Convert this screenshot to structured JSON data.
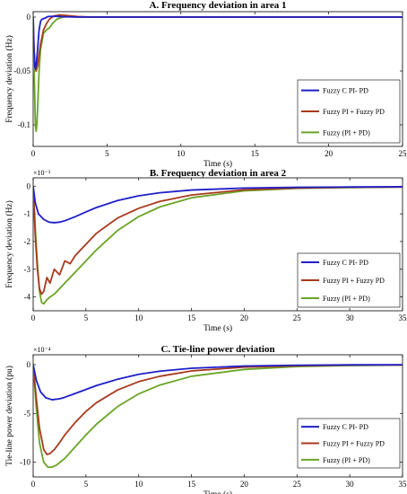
{
  "chart_data": [
    {
      "type": "line",
      "title": "A. Frequency deviation in area 1",
      "xlabel": "Time (s)",
      "ylabel": "Frequency deviation (Hz)",
      "multiplier": "",
      "xlim": [
        0,
        25
      ],
      "ylim": [
        -0.12,
        0.005
      ],
      "xticks": [
        0,
        5,
        10,
        15,
        20,
        25
      ],
      "yticks": [
        0,
        -0.05,
        -0.1
      ],
      "ytick_labels": [
        "0",
        "-0.05",
        "-0.1"
      ],
      "legend_position": "right",
      "series": [
        {
          "name": "Fuzzy C PI- PD",
          "color": "#1f1fc8",
          "x": [
            0,
            0.05,
            0.1,
            0.15,
            0.2,
            0.3,
            0.4,
            0.5,
            0.6,
            0.8,
            1.0,
            1.5,
            2,
            3,
            5,
            10,
            25
          ],
          "y": [
            0,
            -0.03,
            -0.045,
            -0.048,
            -0.045,
            -0.03,
            -0.012,
            -0.004,
            -0.002,
            -0.001,
            0.0005,
            0.0008,
            0.0003,
            0,
            0,
            0,
            0
          ]
        },
        {
          "name": "Fuzzy PI + Fuzzy PD",
          "color": "#a83a1e",
          "x": [
            0,
            0.05,
            0.1,
            0.2,
            0.3,
            0.4,
            0.5,
            0.7,
            0.9,
            1.1,
            1.4,
            1.8,
            2.2,
            3,
            4,
            6,
            25
          ],
          "y": [
            0,
            -0.025,
            -0.04,
            -0.05,
            -0.045,
            -0.035,
            -0.025,
            -0.012,
            -0.006,
            -0.002,
            0.001,
            0.002,
            0.0015,
            0.0005,
            0,
            0,
            0
          ]
        },
        {
          "name": "Fuzzy (PI + PD)",
          "color": "#6aa428",
          "x": [
            0,
            0.05,
            0.1,
            0.15,
            0.2,
            0.25,
            0.3,
            0.4,
            0.5,
            0.7,
            0.9,
            1.1,
            1.3,
            1.6,
            2,
            2.5,
            3,
            5,
            25
          ],
          "y": [
            0,
            -0.04,
            -0.07,
            -0.1,
            -0.106,
            -0.1,
            -0.085,
            -0.05,
            -0.03,
            -0.015,
            -0.012,
            -0.01,
            -0.006,
            -0.002,
            0,
            0.0005,
            0,
            0,
            0
          ]
        }
      ]
    },
    {
      "type": "line",
      "title": "B. Frequency deviation in area 2",
      "xlabel": "Time (s)",
      "ylabel": "Frequency deviation (Hz)",
      "multiplier": "×10⁻³",
      "xlim": [
        0,
        35
      ],
      "ylim": [
        -4.5,
        0.3
      ],
      "xticks": [
        0,
        5,
        10,
        15,
        20,
        25,
        30,
        35
      ],
      "yticks": [
        0,
        -1,
        -2,
        -3,
        -4
      ],
      "ytick_labels": [
        "0",
        "-1",
        "-2",
        "-3",
        "-4"
      ],
      "legend_position": "right",
      "series": [
        {
          "name": "Fuzzy C PI- PD",
          "color": "#1f1fc8",
          "x": [
            0,
            0.2,
            0.5,
            1,
            1.5,
            2,
            2.5,
            3,
            4,
            5,
            6,
            8,
            10,
            12,
            15,
            20,
            25,
            30,
            35
          ],
          "y": [
            0,
            -0.6,
            -1.0,
            -1.2,
            -1.3,
            -1.32,
            -1.3,
            -1.25,
            -1.1,
            -0.93,
            -0.77,
            -0.52,
            -0.35,
            -0.24,
            -0.14,
            -0.07,
            -0.04,
            -0.03,
            -0.02
          ]
        },
        {
          "name": "Fuzzy PI + Fuzzy PD",
          "color": "#a83a1e",
          "x": [
            0,
            0.2,
            0.4,
            0.6,
            0.8,
            1.0,
            1.3,
            1.6,
            2.0,
            2.5,
            3,
            3.5,
            4,
            5,
            6,
            8,
            10,
            12,
            15,
            20,
            25,
            30,
            35
          ],
          "y": [
            0,
            -1.8,
            -3.0,
            -3.7,
            -3.9,
            -3.8,
            -3.3,
            -3.5,
            -3.0,
            -3.2,
            -2.7,
            -2.8,
            -2.5,
            -2.1,
            -1.7,
            -1.15,
            -0.8,
            -0.55,
            -0.32,
            -0.13,
            -0.07,
            -0.04,
            -0.03
          ]
        },
        {
          "name": "Fuzzy (PI + PD)",
          "color": "#6aa428",
          "x": [
            0,
            0.2,
            0.4,
            0.6,
            0.8,
            1.0,
            1.3,
            1.6,
            2,
            2.5,
            3,
            4,
            5,
            6,
            8,
            10,
            12,
            15,
            20,
            25,
            30,
            35
          ],
          "y": [
            0,
            -1.5,
            -2.8,
            -3.8,
            -4.2,
            -4.25,
            -4.1,
            -4.0,
            -3.9,
            -3.7,
            -3.5,
            -3.1,
            -2.7,
            -2.3,
            -1.6,
            -1.1,
            -0.75,
            -0.42,
            -0.17,
            -0.08,
            -0.05,
            -0.03
          ]
        }
      ]
    },
    {
      "type": "line",
      "title": "C. Tie-line power deviation",
      "xlabel": "Time (s)",
      "ylabel": "Tie-line power deviation (pu)",
      "multiplier": "×10⁻⁴",
      "xlim": [
        0,
        35
      ],
      "ylim": [
        -11.5,
        1
      ],
      "xticks": [
        0,
        5,
        10,
        15,
        20,
        25,
        30,
        35
      ],
      "yticks": [
        0,
        -5,
        -10
      ],
      "ytick_labels": [
        "0",
        "-5",
        "-10"
      ],
      "legend_position": "right",
      "series": [
        {
          "name": "Fuzzy C PI- PD",
          "color": "#1f1fc8",
          "x": [
            0,
            0.3,
            0.7,
            1.2,
            1.8,
            2.5,
            3,
            4,
            5,
            6,
            8,
            10,
            12,
            15,
            20,
            25,
            30,
            35
          ],
          "y": [
            0,
            -1.6,
            -2.8,
            -3.4,
            -3.6,
            -3.5,
            -3.35,
            -2.95,
            -2.55,
            -2.15,
            -1.5,
            -1.0,
            -0.68,
            -0.38,
            -0.15,
            -0.07,
            -0.03,
            -0.02
          ]
        },
        {
          "name": "Fuzzy PI + Fuzzy PD",
          "color": "#a83a1e",
          "x": [
            0,
            0.3,
            0.6,
            1.0,
            1.3,
            1.6,
            2,
            2.5,
            3,
            4,
            5,
            6,
            8,
            10,
            12,
            15,
            20,
            25,
            30,
            35
          ],
          "y": [
            0,
            -3.5,
            -6.5,
            -8.7,
            -9.2,
            -9.1,
            -8.7,
            -8.0,
            -7.2,
            -5.9,
            -4.8,
            -3.9,
            -2.6,
            -1.75,
            -1.2,
            -0.65,
            -0.26,
            -0.12,
            -0.06,
            -0.04
          ]
        },
        {
          "name": "Fuzzy (PI + PD)",
          "color": "#6aa428",
          "x": [
            0,
            0.3,
            0.6,
            1.0,
            1.4,
            1.8,
            2.2,
            3,
            4,
            5,
            6,
            8,
            10,
            12,
            15,
            20,
            25,
            30,
            35
          ],
          "y": [
            0,
            -4.5,
            -8.0,
            -10.0,
            -10.5,
            -10.5,
            -10.3,
            -9.6,
            -8.4,
            -7.2,
            -6.1,
            -4.3,
            -3.0,
            -2.1,
            -1.2,
            -0.5,
            -0.2,
            -0.1,
            -0.05
          ]
        }
      ]
    }
  ]
}
